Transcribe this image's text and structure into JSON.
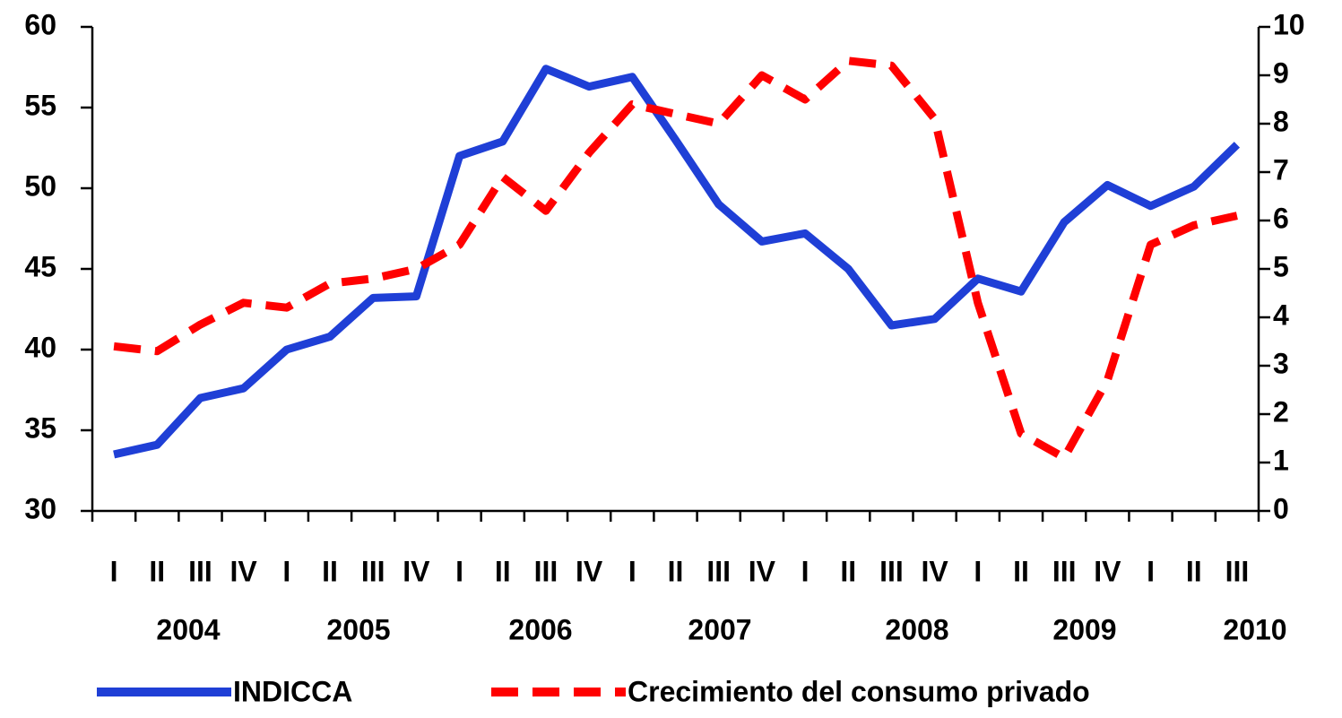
{
  "chart_data": {
    "type": "line",
    "categories": [
      "I",
      "II",
      "III",
      "IV",
      "I",
      "II",
      "III",
      "IV",
      "I",
      "II",
      "III",
      "IV",
      "I",
      "II",
      "III",
      "IV",
      "I",
      "II",
      "III",
      "IV",
      "I",
      "II",
      "III",
      "IV",
      "I",
      "II",
      "III"
    ],
    "year_labels": [
      "2004",
      "2005",
      "2006",
      "2007",
      "2008",
      "2009",
      "2010"
    ],
    "series": [
      {
        "name": "INDICCA",
        "color": "#1f3fd6",
        "style": "solid",
        "values": [
          33.5,
          34.1,
          37,
          37.6,
          40,
          40.8,
          43.2,
          43.3,
          52,
          52.9,
          57.4,
          56.3,
          56.9,
          53,
          49,
          46.7,
          47.2,
          45,
          41.5,
          41.9,
          44.4,
          43.6,
          47.9,
          50.2,
          48.9,
          50.1,
          52.7
        ]
      },
      {
        "name": "Crecimiento del consumo privado",
        "color": "#ff0000",
        "style": "dashed",
        "axis": "y2",
        "values": [
          3.4,
          3.3,
          3.85,
          4.3,
          4.2,
          4.7,
          4.8,
          5.0,
          5.5,
          6.9,
          6.2,
          7.4,
          8.4,
          8.2,
          8.0,
          9.0,
          8.5,
          9.3,
          9.2,
          8.1,
          4.3,
          1.6,
          1.1,
          2.7,
          5.5,
          5.9,
          6.1
        ]
      }
    ],
    "ylim": [
      30,
      60
    ],
    "yticks": [
      30,
      35,
      40,
      45,
      50,
      55,
      60
    ],
    "y2lim": [
      0,
      10
    ],
    "y2ticks": [
      0,
      1,
      2,
      3,
      4,
      5,
      6,
      7,
      8,
      9,
      10
    ],
    "grid": false,
    "legend": "bottom"
  }
}
